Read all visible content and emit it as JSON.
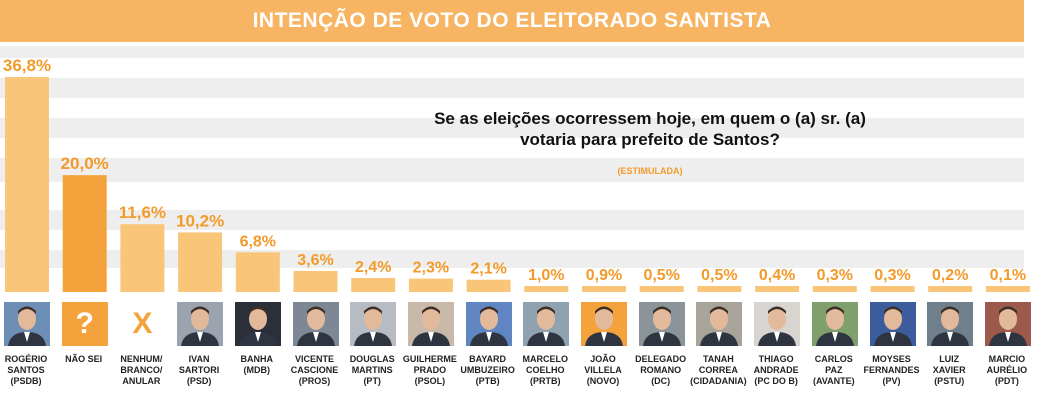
{
  "header": {
    "title": "INTENÇÃO DE VOTO DO ELEITORADO SANTISTA"
  },
  "question": {
    "line1": "Se as eleições ocorressem hoje, em quem o (a) sr. (a)",
    "line2": "votaria para prefeito de Santos?",
    "sub": "(ESTIMULADA)"
  },
  "colors": {
    "bar": "#F9C579",
    "bar_dark": "#F4A33C",
    "label": "#F39B2A",
    "header": "#F7B462",
    "band": "#EEEEEE"
  },
  "chart_data": {
    "type": "bar",
    "title": "INTENÇÃO DE VOTO DO ELEITORADO SANTISTA",
    "categories": [
      "ROGÉRIO SANTOS (PSDB)",
      "NÃO SEI",
      "NENHUM/ BRANCO/ ANULAR",
      "IVAN SARTORI (PSD)",
      "BANHA (MDB)",
      "VICENTE CASCIONE (PROS)",
      "DOUGLAS MARTINS (PT)",
      "GUILHERME PRADO (PSOL)",
      "BAYARD UMBUZEIRO (PTB)",
      "MARCELO COELHO (PRTB)",
      "JOÃO VILLELA (NOVO)",
      "DELEGADO ROMANO (DC)",
      "TANAH CORREA (CIDADANIA)",
      "THIAGO ANDRADE (PC DO B)",
      "CARLOS PAZ (AVANTE)",
      "MOYSES FERNANDES (PV)",
      "LUIZ XAVIER (PSTU)",
      "MARCIO AURÉLIO (PDT)"
    ],
    "values": [
      36.8,
      20.0,
      11.6,
      10.2,
      6.8,
      3.6,
      2.4,
      2.3,
      2.1,
      1.0,
      0.9,
      0.5,
      0.5,
      0.4,
      0.3,
      0.3,
      0.2,
      0.1
    ],
    "value_labels": [
      "36,8%",
      "20,0%",
      "11,6%",
      "10,2%",
      "6,8%",
      "3,6%",
      "2,4%",
      "2,3%",
      "2,1%",
      "1,0%",
      "0,9%",
      "0,5%",
      "0,5%",
      "0,4%",
      "0,3%",
      "0,3%",
      "0,2%",
      "0,1%"
    ],
    "ylim": [
      0,
      36.8
    ],
    "grid": false
  },
  "candidates": [
    {
      "name": "ROGÉRIO\nSANTOS\n(PSDB)",
      "photo": "person",
      "bg": "#6E8FB5"
    },
    {
      "name": "NÃO SEI",
      "photo": "symbol",
      "symbol": "?",
      "bg": "#F4A33C"
    },
    {
      "name": "NENHUM/\nBRANCO/\nANULAR",
      "photo": "symbol",
      "symbol": "X",
      "bg": "#ffffff",
      "fg": "#F4A33C"
    },
    {
      "name": "IVAN\nSARTORI\n(PSD)",
      "photo": "person",
      "bg": "#9AA3AE"
    },
    {
      "name": "BANHA\n(MDB)",
      "photo": "person",
      "bg": "#2B2F3A"
    },
    {
      "name": "VICENTE\nCASCIONE\n(PROS)",
      "photo": "person",
      "bg": "#7D8894"
    },
    {
      "name": "DOUGLAS\nMARTINS\n(PT)",
      "photo": "person",
      "bg": "#B7BCC4"
    },
    {
      "name": "GUILHERME\nPRADO\n(PSOL)",
      "photo": "person",
      "bg": "#C9B9A8"
    },
    {
      "name": "BAYARD\nUMBUZEIRO\n(PTB)",
      "photo": "person",
      "bg": "#5F86C2"
    },
    {
      "name": "MARCELO\nCOELHO\n(PRTB)",
      "photo": "person",
      "bg": "#8FA2B0"
    },
    {
      "name": "JOÃO\nVILLELA\n(NOVO)",
      "photo": "person",
      "bg": "#F4A33C"
    },
    {
      "name": "DELEGADO\nROMANO\n(DC)",
      "photo": "person",
      "bg": "#8B9599"
    },
    {
      "name": "TANAH\nCORREA\n(CIDADANIA)",
      "photo": "person",
      "bg": "#A9A49A"
    },
    {
      "name": "THIAGO\nANDRADE\n(PC DO B)",
      "photo": "person",
      "bg": "#D8D4CF"
    },
    {
      "name": "CARLOS\nPAZ\n(AVANTE)",
      "photo": "person",
      "bg": "#7FA06C"
    },
    {
      "name": "MOYSES\nFERNANDES\n(PV)",
      "photo": "person",
      "bg": "#3D5C9E"
    },
    {
      "name": "LUIZ\nXAVIER\n(PSTU)",
      "photo": "person",
      "bg": "#6F7F8C"
    },
    {
      "name": "MARCIO\nAURÉLIO\n(PDT)",
      "photo": "person",
      "bg": "#9C5A4A"
    }
  ]
}
